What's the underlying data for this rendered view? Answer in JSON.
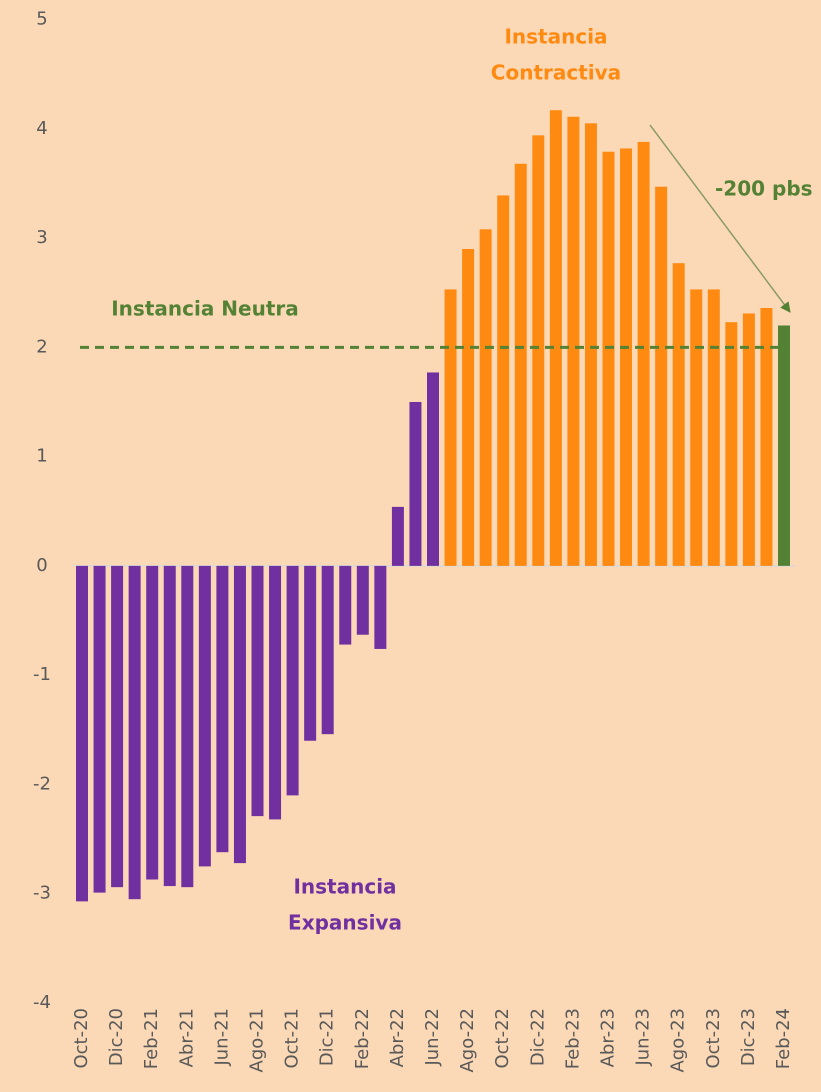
{
  "chart_data": {
    "type": "bar",
    "categories": [
      "Oct-20",
      null,
      "Dic-20",
      null,
      "Feb-21",
      null,
      "Abr-21",
      null,
      "Jun-21",
      null,
      "Ago-21",
      null,
      "Oct-21",
      null,
      "Dic-21",
      null,
      "Feb-22",
      null,
      "Abr-22",
      null,
      "Jun-22",
      null,
      "Ago-22",
      null,
      "Oct-22",
      null,
      "Dic-22",
      null,
      "Feb-23",
      null,
      "Abr-23",
      null,
      "Jun-23",
      null,
      "Ago-23",
      null,
      "Oct-23",
      null,
      "Dic-23",
      null,
      "Feb-24"
    ],
    "values": [
      -3.07,
      -2.99,
      -2.94,
      -3.05,
      -2.87,
      -2.93,
      -2.94,
      -2.75,
      -2.62,
      -2.72,
      -2.29,
      -2.32,
      -2.1,
      -1.6,
      -1.54,
      -0.72,
      -0.63,
      -0.76,
      0.54,
      1.5,
      1.77,
      2.53,
      2.9,
      3.08,
      3.39,
      3.68,
      3.94,
      4.17,
      4.11,
      4.05,
      3.79,
      3.82,
      3.88,
      3.47,
      2.77,
      2.53,
      2.53,
      2.23,
      2.31,
      2.36,
      2.2
    ],
    "colors": [
      "#7030a0",
      "#7030a0",
      "#7030a0",
      "#7030a0",
      "#7030a0",
      "#7030a0",
      "#7030a0",
      "#7030a0",
      "#7030a0",
      "#7030a0",
      "#7030a0",
      "#7030a0",
      "#7030a0",
      "#7030a0",
      "#7030a0",
      "#7030a0",
      "#7030a0",
      "#7030a0",
      "#7030a0",
      "#7030a0",
      "#7030a0",
      "#ff8a12",
      "#ff8a12",
      "#ff8a12",
      "#ff8a12",
      "#ff8a12",
      "#ff8a12",
      "#ff8a12",
      "#ff8a12",
      "#ff8a12",
      "#ff8a12",
      "#ff8a12",
      "#ff8a12",
      "#ff8a12",
      "#ff8a12",
      "#ff8a12",
      "#ff8a12",
      "#ff8a12",
      "#ff8a12",
      "#ff8a12",
      "#548235"
    ],
    "ylim": [
      -4,
      5
    ],
    "yticks": [
      -4,
      -3,
      -2,
      -1,
      0,
      1,
      2,
      3,
      4,
      5
    ],
    "grid": false,
    "neutral_level": 2,
    "annotations": [
      {
        "text": [
          "Instancia",
          "Contractiva"
        ],
        "color": "#ff8a12"
      },
      {
        "text": [
          "Instancia Neutra"
        ],
        "color": "#548235"
      },
      {
        "text": [
          "-200 pbs"
        ],
        "color": "#548235"
      },
      {
        "text": [
          "Instancia",
          "Expansiva"
        ],
        "color": "#7030a0"
      }
    ]
  }
}
